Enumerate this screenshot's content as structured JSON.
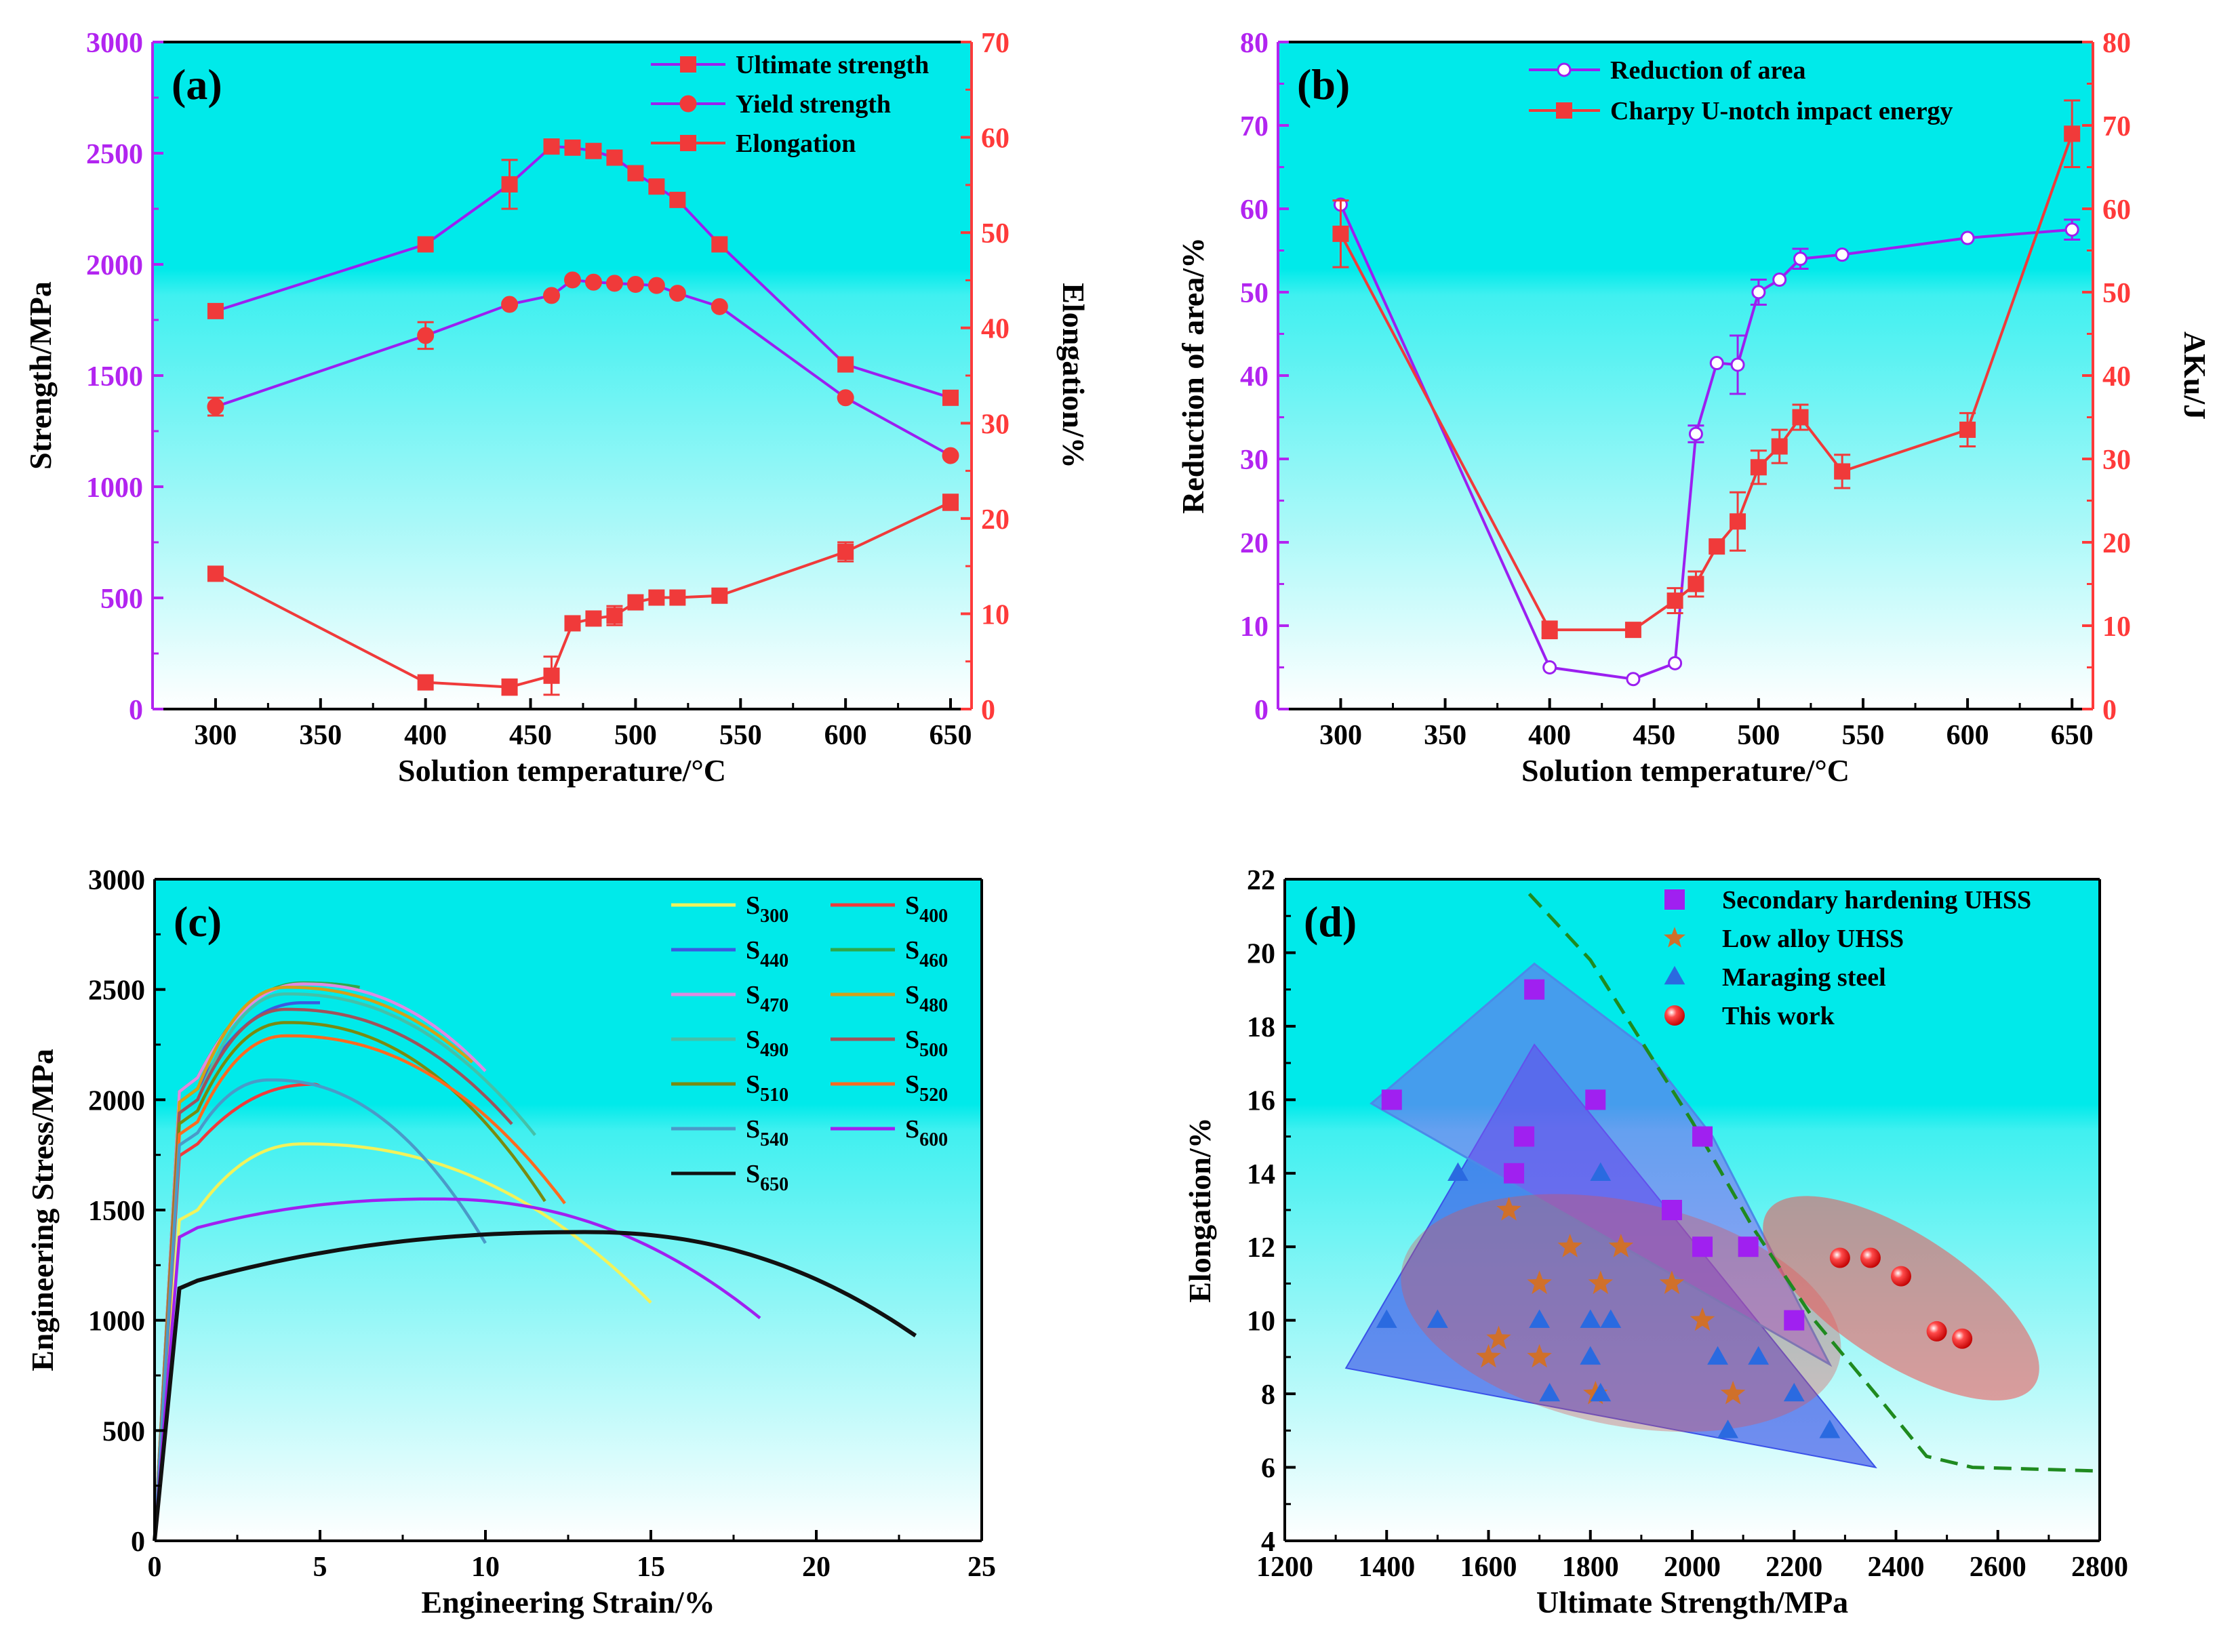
{
  "colors": {
    "purple": "#9b1ff0",
    "red": "#f03a3a",
    "bg_top": "#00ecec",
    "bg_bottom": "#ffffff",
    "axis_left_a": "#b224f0",
    "axis_right_a": "#ff3a3a",
    "dash_green": "#1f8a1f"
  },
  "chart_data": [
    {
      "panel": "(a)",
      "type": "line",
      "xlabel": "Solution temperature/°C",
      "ylabel": "Strength/MPa",
      "y2label": "Elongation/%",
      "xlim": [
        270,
        660
      ],
      "ylim": [
        0,
        3000
      ],
      "y2lim": [
        0,
        70
      ],
      "xticks": [
        300,
        350,
        400,
        450,
        500,
        550,
        600,
        650
      ],
      "yticks": [
        0,
        500,
        1000,
        1500,
        2000,
        2500,
        3000
      ],
      "y2ticks": [
        0,
        10,
        20,
        30,
        40,
        50,
        60,
        70
      ],
      "x": [
        300,
        400,
        440,
        460,
        470,
        480,
        490,
        500,
        510,
        520,
        540,
        600,
        650
      ],
      "series": [
        {
          "name": "Ultimate strength",
          "axis": "left",
          "marker": "square",
          "color": "#9b1ff0",
          "marker_color": "#f03a3a",
          "values": [
            1790,
            2090,
            2360,
            2530,
            2525,
            2510,
            2480,
            2410,
            2350,
            2290,
            2090,
            1550,
            1400
          ],
          "errors": [
            0,
            0,
            110,
            0,
            0,
            0,
            0,
            0,
            0,
            0,
            0,
            0,
            0
          ]
        },
        {
          "name": "Yield strength",
          "axis": "left",
          "marker": "circle",
          "color": "#9b1ff0",
          "marker_color": "#f03a3a",
          "values": [
            1360,
            1680,
            1820,
            1860,
            1930,
            1920,
            1915,
            1910,
            1905,
            1870,
            1810,
            1400,
            1140
          ],
          "errors": [
            40,
            60,
            0,
            0,
            0,
            0,
            0,
            0,
            0,
            0,
            0,
            0,
            0
          ]
        },
        {
          "name": "Elongation",
          "axis": "right",
          "marker": "square",
          "color": "#f03a3a",
          "marker_color": "#f03a3a",
          "values": [
            14.2,
            2.8,
            2.3,
            3.5,
            9.0,
            9.5,
            9.8,
            11.2,
            11.7,
            11.7,
            11.9,
            16.5,
            21.7
          ],
          "errors": [
            0,
            0,
            0.8,
            2.0,
            0,
            0,
            1.0,
            0,
            0,
            0,
            0,
            1.0,
            0.8
          ]
        }
      ]
    },
    {
      "panel": "(b)",
      "type": "line",
      "xlabel": "Solution temperature/°C",
      "ylabel": "Reduction of area/%",
      "y2label": "AKu/J",
      "xlim": [
        270,
        660
      ],
      "ylim": [
        0,
        80
      ],
      "y2lim": [
        0,
        80
      ],
      "xticks": [
        300,
        350,
        400,
        450,
        500,
        550,
        600,
        650
      ],
      "yticks": [
        0,
        10,
        20,
        30,
        40,
        50,
        60,
        70,
        80
      ],
      "y2ticks": [
        0,
        10,
        20,
        30,
        40,
        50,
        60,
        70,
        80
      ],
      "series": [
        {
          "name": "Reduction of area",
          "axis": "left",
          "marker": "circle",
          "color": "#9b1ff0",
          "x": [
            300,
            400,
            440,
            460,
            470,
            480,
            490,
            500,
            510,
            520,
            540,
            600,
            650
          ],
          "values": [
            60.5,
            5.0,
            3.6,
            5.5,
            33.0,
            41.5,
            41.3,
            50.0,
            51.5,
            54.0,
            54.5,
            56.5,
            57.5
          ],
          "errors": [
            0,
            0,
            0,
            0,
            1.0,
            0,
            3.5,
            1.5,
            0,
            1.2,
            0,
            0,
            1.2
          ]
        },
        {
          "name": "Charpy U-notch impact energy",
          "axis": "right",
          "marker": "square",
          "color": "#f03a3a",
          "x": [
            300,
            400,
            440,
            460,
            470,
            480,
            490,
            500,
            510,
            520,
            540,
            600,
            650
          ],
          "values": [
            57.0,
            9.5,
            9.5,
            13.0,
            15.0,
            19.5,
            22.5,
            29.0,
            31.5,
            35.0,
            28.5,
            33.5,
            69.0
          ],
          "errors": [
            4.0,
            1.0,
            0,
            1.5,
            1.5,
            0,
            3.5,
            2.0,
            2.0,
            1.5,
            2.0,
            2.0,
            4.0
          ]
        }
      ]
    },
    {
      "panel": "(c)",
      "type": "line",
      "xlabel": "Engineering Strain/%",
      "ylabel": "Engineering Stress/MPa",
      "xlim": [
        0,
        25
      ],
      "ylim": [
        0,
        3000
      ],
      "xticks": [
        0,
        5,
        10,
        15,
        20,
        25
      ],
      "yticks": [
        0,
        500,
        1000,
        1500,
        2000,
        2500,
        3000
      ],
      "series": [
        {
          "name": "S300",
          "sub": "300",
          "color": "#f2f25a",
          "uts": 1800,
          "peak": 4.5,
          "end": 15.0,
          "ys": 1500,
          "endv": 1080
        },
        {
          "name": "S400",
          "sub": "400",
          "color": "#f03a3a",
          "uts": 2070,
          "peak": 4.8,
          "end": 5.0,
          "ys": 1800,
          "endv": 2060
        },
        {
          "name": "S440",
          "sub": "440",
          "color": "#3a5ae0",
          "uts": 2440,
          "peak": 4.5,
          "end": 5.0,
          "ys": 2050,
          "endv": 2440
        },
        {
          "name": "S460",
          "sub": "460",
          "color": "#2ea84a",
          "uts": 2530,
          "peak": 4.5,
          "end": 6.2,
          "ys": 2100,
          "endv": 2510
        },
        {
          "name": "S470",
          "sub": "470",
          "color": "#e08ae0",
          "uts": 2525,
          "peak": 4.5,
          "end": 10.0,
          "ys": 2100,
          "endv": 2130
        },
        {
          "name": "S480",
          "sub": "480",
          "color": "#d4a017",
          "uts": 2510,
          "peak": 4.0,
          "end": 9.6,
          "ys": 2050,
          "endv": 2170
        },
        {
          "name": "S490",
          "sub": "490",
          "color": "#45c0a8",
          "uts": 2480,
          "peak": 4.0,
          "end": 11.5,
          "ys": 2000,
          "endv": 1840
        },
        {
          "name": "S500",
          "sub": "500",
          "color": "#a0525a",
          "uts": 2410,
          "peak": 4.0,
          "end": 10.8,
          "ys": 2000,
          "endv": 1890
        },
        {
          "name": "S510",
          "sub": "510",
          "color": "#7a8a10",
          "uts": 2350,
          "peak": 4.0,
          "end": 11.8,
          "ys": 1950,
          "endv": 1540
        },
        {
          "name": "S520",
          "sub": "520",
          "color": "#ff6a1f",
          "uts": 2290,
          "peak": 4.0,
          "end": 12.4,
          "ys": 1900,
          "endv": 1530
        },
        {
          "name": "S540",
          "sub": "540",
          "color": "#4a9ac8",
          "uts": 2090,
          "peak": 3.5,
          "end": 10.0,
          "ys": 1850,
          "endv": 1350
        },
        {
          "name": "S600",
          "sub": "600",
          "color": "#a020f0",
          "uts": 1550,
          "peak": 8.5,
          "end": 18.3,
          "ys": 1420,
          "endv": 1010
        },
        {
          "name": "S650",
          "sub": "650",
          "color": "#111111",
          "uts": 1400,
          "peak": 13.0,
          "end": 23.0,
          "ys": 1180,
          "endv": 930
        }
      ]
    },
    {
      "panel": "(d)",
      "type": "scatter",
      "xlabel": "Ultimate Strength/MPa",
      "ylabel": "Elongation/%",
      "xlim": [
        1200,
        2800
      ],
      "ylim": [
        4,
        22
      ],
      "xticks": [
        1200,
        1400,
        1600,
        1800,
        2000,
        2200,
        2400,
        2600,
        2800
      ],
      "yticks": [
        4,
        6,
        8,
        10,
        12,
        14,
        16,
        18,
        20,
        22
      ],
      "series": [
        {
          "name": "Secondary hardening UHSS",
          "marker": "square",
          "color": "#a020f0",
          "points": [
            [
              1410,
              16
            ],
            [
              1690,
              19
            ],
            [
              1810,
              16
            ],
            [
              1670,
              15
            ],
            [
              2020,
              15
            ],
            [
              1650,
              14
            ],
            [
              1960,
              13
            ],
            [
              2020,
              12
            ],
            [
              2110,
              12
            ],
            [
              2200,
              10
            ]
          ]
        },
        {
          "name": "Low alloy UHSS",
          "marker": "star",
          "color": "#d0702a",
          "points": [
            [
              1640,
              13
            ],
            [
              1760,
              12
            ],
            [
              1860,
              12
            ],
            [
              1700,
              11
            ],
            [
              1820,
              11
            ],
            [
              1960,
              11
            ],
            [
              2020,
              10
            ],
            [
              1620,
              9.5
            ],
            [
              1600,
              9
            ],
            [
              1700,
              9
            ],
            [
              1810,
              8
            ],
            [
              2080,
              8
            ]
          ]
        },
        {
          "name": "Maraging steel",
          "marker": "triangle",
          "color": "#2a6ae0",
          "points": [
            [
              1540,
              14
            ],
            [
              1820,
              14
            ],
            [
              1400,
              10
            ],
            [
              1500,
              10
            ],
            [
              1700,
              10
            ],
            [
              1800,
              10
            ],
            [
              1840,
              10
            ],
            [
              1720,
              8
            ],
            [
              1800,
              9
            ],
            [
              1820,
              8
            ],
            [
              2050,
              9
            ],
            [
              2130,
              9
            ],
            [
              2070,
              7
            ],
            [
              2200,
              8
            ],
            [
              2270,
              7
            ]
          ]
        },
        {
          "name": "This work",
          "marker": "circle",
          "color": "#f03a3a",
          "points": [
            [
              2290,
              11.7
            ],
            [
              2350,
              11.7
            ],
            [
              2410,
              11.2
            ],
            [
              2480,
              9.7
            ],
            [
              2530,
              9.5
            ]
          ]
        }
      ],
      "boundary": [
        [
          1680,
          21.6
        ],
        [
          1800,
          19.8
        ],
        [
          2000,
          15.4
        ],
        [
          2120,
          12.5
        ],
        [
          2240,
          10.0
        ],
        [
          2360,
          8.0
        ],
        [
          2460,
          6.3
        ],
        [
          2550,
          6.0
        ],
        [
          2800,
          5.9
        ]
      ]
    }
  ]
}
